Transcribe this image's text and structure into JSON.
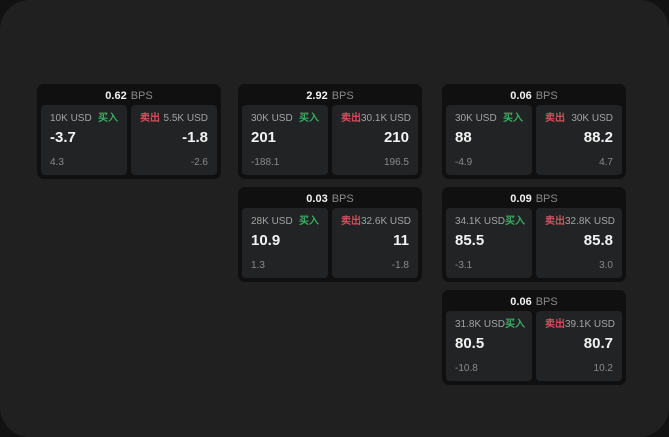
{
  "theme": {
    "backdrop": "#121212",
    "surface": "#1f201f",
    "card": "#101011",
    "panel": "#222324",
    "text_primary": "#f2f2f2",
    "text_secondary": "#a3a3a3",
    "text_muted": "#8a8a8a",
    "green": "#3cab63",
    "red": "#cf4f5e"
  },
  "labels": {
    "bps": "BPS",
    "buy": "买入",
    "sell": "卖出"
  },
  "cards": [
    {
      "bps": "0.62",
      "buy": {
        "amount": "10K USD",
        "value": "-3.7",
        "sub": "4.3"
      },
      "sell": {
        "amount": "5.5K USD",
        "value": "-1.8",
        "sub": "-2.6"
      }
    },
    {
      "bps": "2.92",
      "buy": {
        "amount": "30K USD",
        "value": "201",
        "sub": "-188.1"
      },
      "sell": {
        "amount": "30.1K USD",
        "value": "210",
        "sub": "196.5"
      }
    },
    {
      "bps": "0.06",
      "buy": {
        "amount": "30K USD",
        "value": "88",
        "sub": "-4.9"
      },
      "sell": {
        "amount": "30K USD",
        "value": "88.2",
        "sub": "4.7"
      }
    },
    {
      "bps": "0.03",
      "buy": {
        "amount": "28K USD",
        "value": "10.9",
        "sub": "1.3"
      },
      "sell": {
        "amount": "32.6K USD",
        "value": "11",
        "sub": "-1.8"
      }
    },
    {
      "bps": "0.09",
      "buy": {
        "amount": "34.1K USD",
        "value": "85.5",
        "sub": "-3.1"
      },
      "sell": {
        "amount": "32.8K USD",
        "value": "85.8",
        "sub": "3.0"
      }
    },
    {
      "bps": "0.06",
      "buy": {
        "amount": "31.8K USD",
        "value": "80.5",
        "sub": "-10.8"
      },
      "sell": {
        "amount": "39.1K USD",
        "value": "80.7",
        "sub": "10.2"
      }
    }
  ]
}
